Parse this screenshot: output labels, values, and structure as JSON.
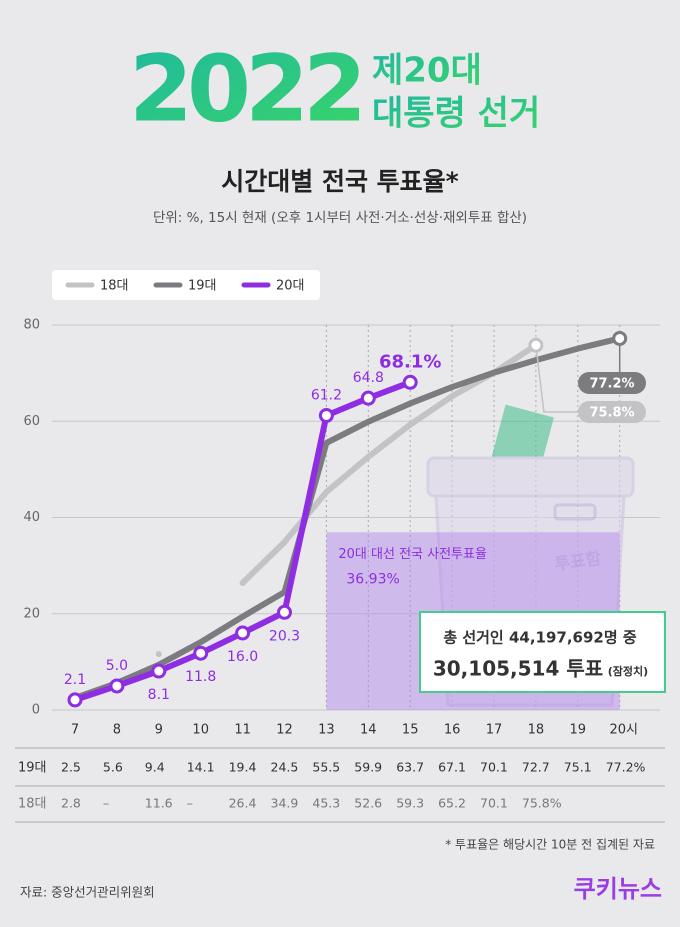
{
  "header": {
    "year": "2022",
    "edition": "제20대",
    "event": "대통령 선거"
  },
  "chart_data": {
    "type": "line",
    "title": "시간대별 전국 투표율*",
    "subtitle": "단위: %, 15시 현재 (오후 1시부터 사전·거소·선상·재외투표 합산)",
    "categories": [
      "7",
      "8",
      "9",
      "10",
      "11",
      "12",
      "13",
      "14",
      "15",
      "16",
      "17",
      "18",
      "19",
      "20시"
    ],
    "ylim": [
      0,
      80
    ],
    "yticks": [
      0,
      20,
      40,
      60,
      80
    ],
    "grid": true,
    "series": [
      {
        "name": "18대",
        "color": "#c3c3c6",
        "values": [
          2.8,
          null,
          11.6,
          null,
          26.4,
          34.9,
          45.3,
          52.6,
          59.3,
          65.2,
          70.1,
          75.8,
          null,
          null
        ],
        "value_labels": [
          "2.8",
          "–",
          "11.6",
          "–",
          "26.4",
          "34.9",
          "45.3",
          "52.6",
          "59.3",
          "65.2",
          "70.1",
          "75.8%",
          null,
          null
        ]
      },
      {
        "name": "19대",
        "color": "#7b7b80",
        "values": [
          2.5,
          5.6,
          9.4,
          14.1,
          19.4,
          24.5,
          55.5,
          59.9,
          63.7,
          67.1,
          70.1,
          72.7,
          75.1,
          77.2
        ],
        "value_labels": [
          "2.5",
          "5.6",
          "9.4",
          "14.1",
          "19.4",
          "24.5",
          "55.5",
          "59.9",
          "63.7",
          "67.1",
          "70.1",
          "72.7",
          "75.1",
          "77.2%"
        ]
      },
      {
        "name": "20대",
        "color": "#8e2de2",
        "values": [
          2.1,
          5.0,
          8.1,
          11.8,
          16.0,
          20.3,
          61.2,
          64.8,
          68.1,
          null,
          null,
          null,
          null,
          null
        ],
        "value_labels": [
          "2.1",
          "5.0",
          "8.1",
          "11.8",
          "16.0",
          "20.3",
          "61.2",
          "64.8",
          "68.1%",
          null,
          null,
          null,
          null,
          null
        ]
      }
    ],
    "early_vote": {
      "label": "20대 대선 전국 사전투표율",
      "value": 36.93,
      "value_label": "36.93%"
    },
    "ballot_box": "투표함",
    "totals": {
      "electorate": "총 선거인 44,197,692명 중",
      "votes": "30,105,514 투표",
      "note": "(잠정치)"
    }
  },
  "footnote": "* 투표율은 해당시간 10분 전 집계된 자료",
  "source": "자료: 중앙선거관리위원회",
  "brand": "쿠키뉴스"
}
